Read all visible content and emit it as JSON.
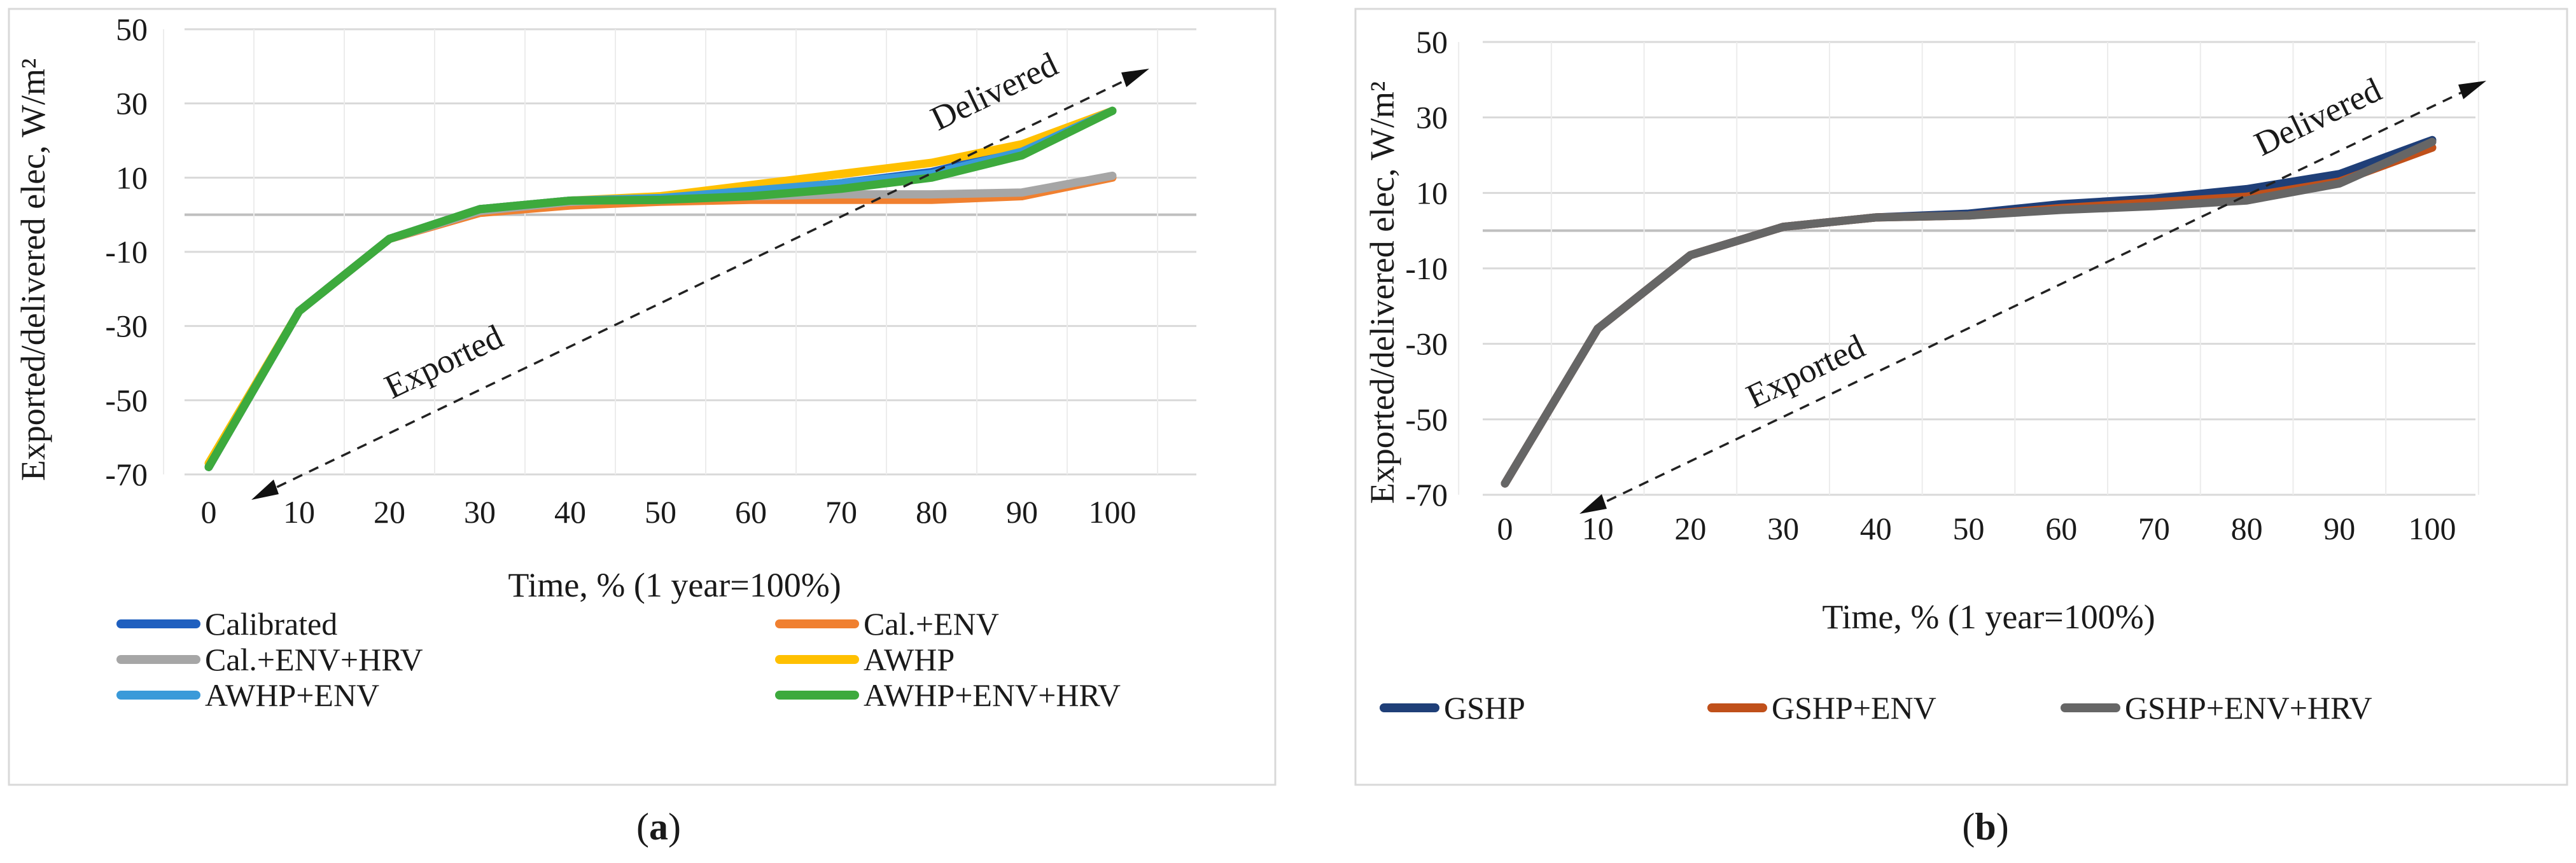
{
  "chart_data": [
    {
      "type": "line",
      "panel_label": "a",
      "title": "",
      "xlabel": "Time, % (1 year=100%)",
      "ylabel": "Exported/delivered elec, W/m²",
      "categories": [
        0,
        10,
        20,
        30,
        40,
        50,
        60,
        70,
        80,
        90,
        100
      ],
      "ylim": [
        -70,
        50
      ],
      "yticks": [
        -70,
        -50,
        -30,
        -10,
        10,
        30,
        50
      ],
      "legend_position": "bottom",
      "annotations": {
        "exported": "Exported",
        "delivered": "Delivered"
      },
      "series": [
        {
          "name": "Calibrated",
          "color": "#1f5fbf",
          "values": [
            -68,
            -26,
            -6.5,
            1.5,
            3.8,
            4.5,
            6.5,
            8.5,
            11.5,
            17.5,
            28
          ]
        },
        {
          "name": "Cal.+ENV",
          "color": "#f08030",
          "values": [
            -68,
            -26,
            -6.5,
            0.5,
            2.5,
            3.5,
            4,
            4,
            4,
            5,
            10
          ]
        },
        {
          "name": "Cal.+ENV+HRV",
          "color": "#a6a6a6",
          "values": [
            -68,
            -26,
            -6.5,
            1,
            3.5,
            4.5,
            5,
            5.5,
            5.5,
            6,
            10.5
          ]
        },
        {
          "name": "AWHP",
          "color": "#ffc000",
          "values": [
            -67,
            -26,
            -6.5,
            1.5,
            3.8,
            5,
            8,
            11,
            14,
            19,
            28
          ]
        },
        {
          "name": "AWHP+ENV",
          "color": "#3a9ad9",
          "values": [
            -68,
            -26,
            -6.5,
            1.5,
            3.8,
            4.5,
            6.5,
            8.5,
            11,
            17,
            28
          ]
        },
        {
          "name": "AWHP+ENV+HRV",
          "color": "#3daa3d",
          "values": [
            -68,
            -26,
            -6.5,
            1.5,
            3.8,
            4,
            5,
            7,
            10,
            16,
            28
          ]
        }
      ]
    },
    {
      "type": "line",
      "panel_label": "b",
      "title": "",
      "xlabel": "Time, % (1 year=100%)",
      "ylabel": "Exported/delivered  elec, W/m²",
      "categories": [
        0,
        10,
        20,
        30,
        40,
        50,
        60,
        70,
        80,
        90,
        100
      ],
      "ylim": [
        -70,
        50
      ],
      "yticks": [
        -70,
        -50,
        -30,
        -10,
        10,
        30,
        50
      ],
      "legend_position": "bottom",
      "annotations": {
        "exported": "Exported",
        "delivered": "Delivered"
      },
      "series": [
        {
          "name": "GSHP",
          "color": "#1f3f78",
          "values": [
            -67,
            -26,
            -6.5,
            1,
            3.5,
            4.5,
            7,
            8.5,
            11,
            15,
            24
          ]
        },
        {
          "name": "GSHP+ENV",
          "color": "#c0501a",
          "values": [
            -67,
            -26,
            -6.5,
            1,
            3.5,
            4,
            6,
            7.5,
            9,
            13,
            22
          ]
        },
        {
          "name": "GSHP+ENV+HRV",
          "color": "#666666",
          "values": [
            -67,
            -26,
            -6.5,
            1,
            3.5,
            4,
            5.5,
            6.5,
            8,
            12.5,
            23.5
          ]
        }
      ]
    }
  ]
}
